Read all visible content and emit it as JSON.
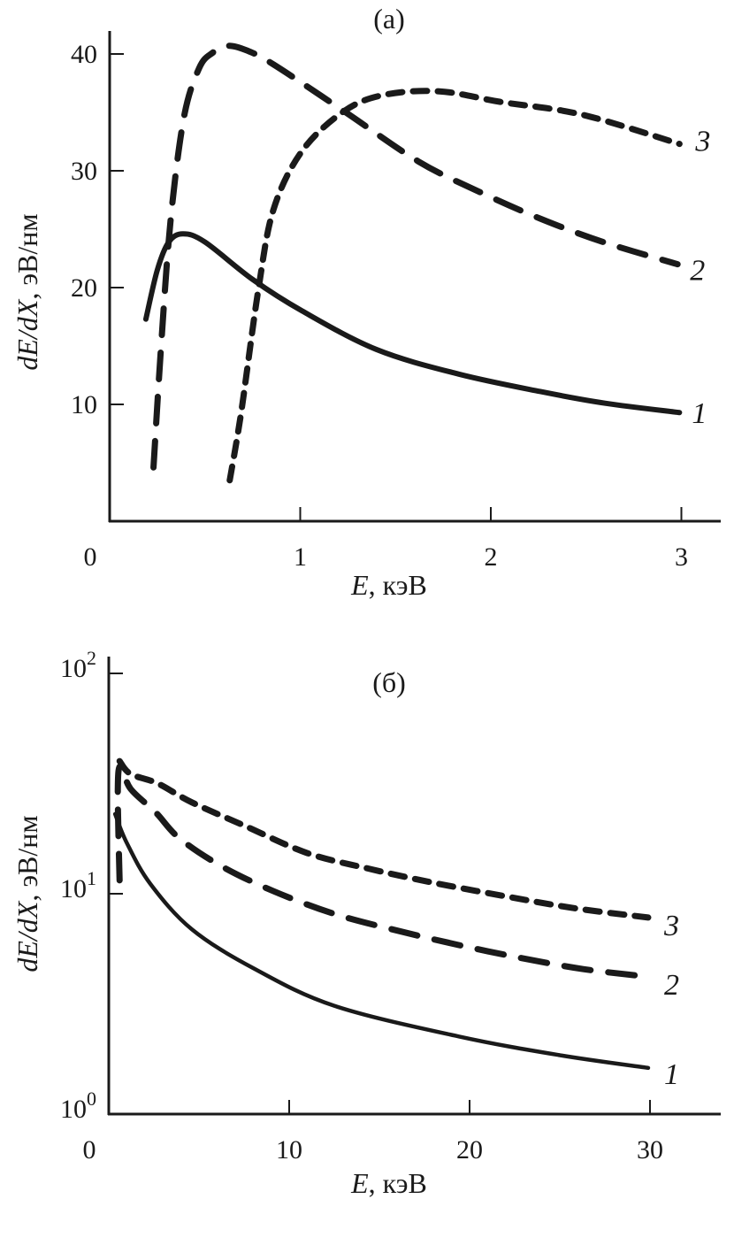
{
  "chart_data": [
    {
      "type": "line",
      "title": "(a)",
      "xlabel_var": "E",
      "xlabel_unit": ", кэВ",
      "ylabel_var": "dE/dX",
      "ylabel_unit": ", эВ/нм",
      "xlim": [
        0,
        3.35
      ],
      "ylim": [
        0,
        42.5
      ],
      "yscale": "linear",
      "xticks": [
        0,
        1,
        2,
        3
      ],
      "xtick_labels": [
        "0",
        "1",
        "2",
        "3"
      ],
      "yticks": [
        10,
        20,
        30,
        40
      ],
      "ytick_labels": [
        "10",
        "20",
        "30",
        "40"
      ],
      "grid": false,
      "series": [
        {
          "name": "1",
          "style": "solid",
          "x": [
            0.19,
            0.25,
            0.31,
            0.385,
            0.5,
            0.75,
            1.01,
            1.4,
            1.83,
            2.26,
            2.6,
            2.99
          ],
          "y": [
            17.3,
            21.5,
            23.9,
            24.6,
            23.9,
            20.7,
            18.0,
            14.7,
            12.6,
            11.1,
            10.1,
            9.3
          ]
        },
        {
          "name": "2",
          "style": "long-dash",
          "x": [
            0.23,
            0.27,
            0.32,
            0.39,
            0.47,
            0.54,
            0.62,
            0.72,
            0.86,
            1.23,
            1.62,
            1.94,
            2.26,
            2.59,
            2.98
          ],
          "y": [
            4.6,
            15.0,
            25.8,
            34.6,
            38.8,
            40.1,
            40.7,
            40.3,
            39.1,
            35.1,
            30.8,
            28.2,
            25.9,
            23.9,
            22.0
          ]
        },
        {
          "name": "3",
          "style": "short-dash",
          "x": [
            0.63,
            0.69,
            0.78,
            0.86,
            1.01,
            1.23,
            1.44,
            1.73,
            2.05,
            2.48,
            2.99
          ],
          "y": [
            3.5,
            9.3,
            19.8,
            26.7,
            31.7,
            35.1,
            36.5,
            36.8,
            35.9,
            34.8,
            32.3
          ]
        }
      ]
    },
    {
      "type": "line",
      "title": "(б)",
      "xlabel_var": "E",
      "xlabel_unit": ", кэВ",
      "ylabel_var": "dE/dX",
      "ylabel_unit": ", эВ/нм",
      "xlim": [
        0,
        34
      ],
      "ylim": [
        1,
        100
      ],
      "yscale": "log",
      "xticks": [
        0,
        10,
        20,
        30
      ],
      "xtick_labels": [
        "0",
        "10",
        "20",
        "30"
      ],
      "yticks": [
        1,
        10,
        100
      ],
      "ytick_labels": [
        {
          "base": "10",
          "exp": "0"
        },
        {
          "base": "10",
          "exp": "1"
        },
        {
          "base": "10",
          "exp": "2"
        }
      ],
      "grid": false,
      "series": [
        {
          "name": "1",
          "style": "solid",
          "x": [
            0.35,
            1.0,
            2.3,
            4.6,
            8.0,
            12.5,
            19.4,
            25.0,
            29.9
          ],
          "y": [
            23,
            17,
            11.1,
            6.9,
            4.6,
            3.1,
            2.25,
            1.85,
            1.62
          ]
        },
        {
          "name": "2",
          "style": "long-dash",
          "x": [
            0.6,
            0.5,
            0.65,
            1.2,
            2.6,
            3.9,
            6.2,
            9.1,
            12.5,
            16.0,
            19.4,
            22.9,
            26.3,
            29.9
          ],
          "y": [
            11.5,
            29,
            38,
            30,
            23.4,
            17.9,
            13.4,
            10.3,
            8.1,
            6.8,
            5.85,
            5.1,
            4.55,
            4.2
          ]
        },
        {
          "name": "3",
          "style": "short-dash",
          "x": [
            0.6,
            1.2,
            2.7,
            4.6,
            7.5,
            11.0,
            14.4,
            17.8,
            21.8,
            25.8,
            29.9
          ],
          "y": [
            40,
            35,
            31.7,
            26,
            20.4,
            15.3,
            13,
            11.3,
            9.8,
            8.6,
            7.8
          ]
        }
      ]
    }
  ]
}
